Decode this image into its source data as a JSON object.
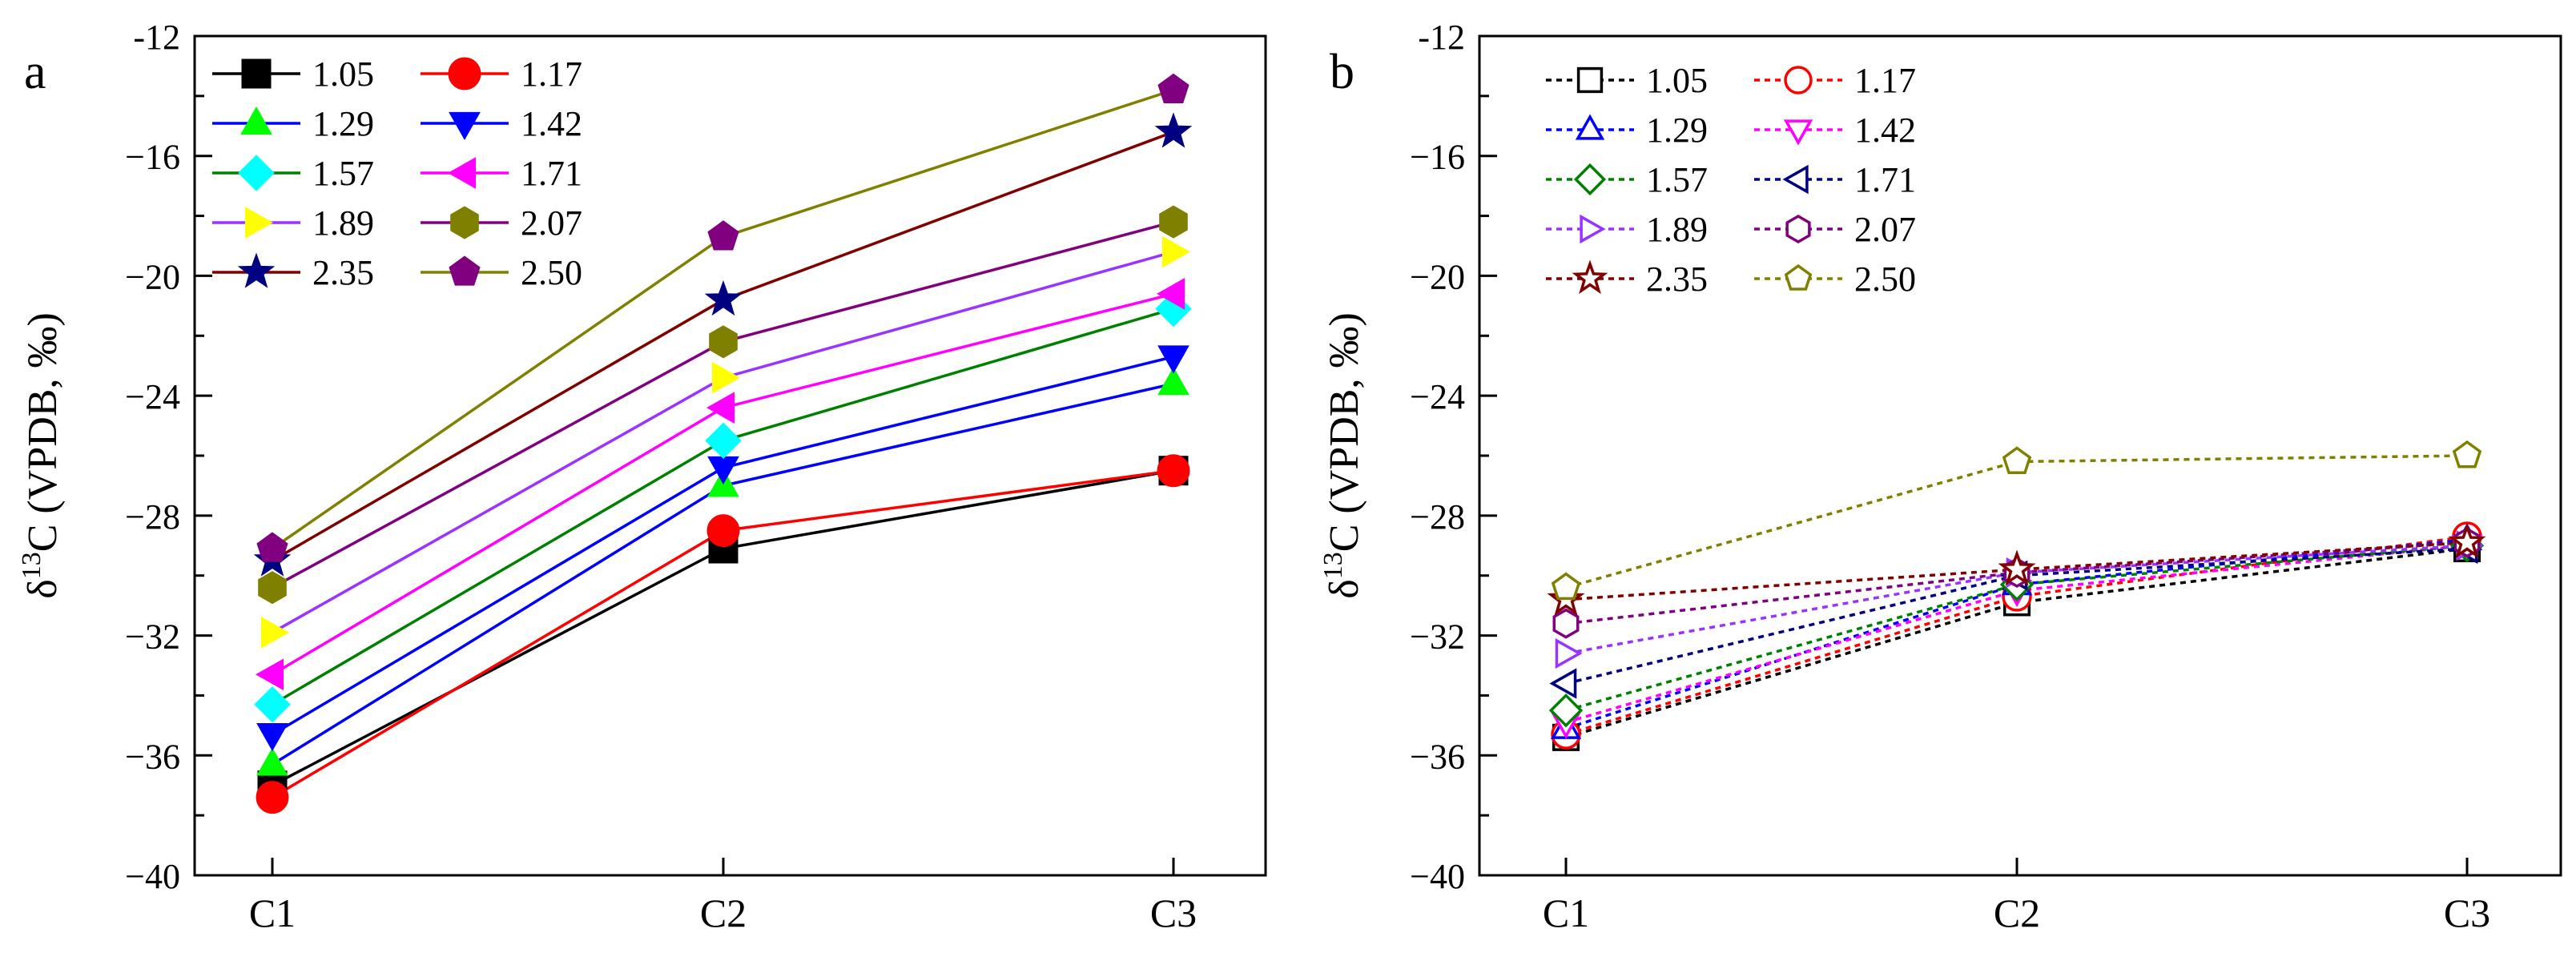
{
  "chart_data": [
    {
      "panel_label": "a",
      "type": "line",
      "line_style": "solid",
      "marker_fill": "filled",
      "title": "",
      "xlabel": "",
      "ylabel_parts": [
        "δ",
        "13",
        "C (VPDB, ‰)"
      ],
      "categories": [
        "C1",
        "C2",
        "C3"
      ],
      "ylim": [
        -40,
        -12
      ],
      "yticks": [
        -12,
        -16,
        -20,
        -24,
        -28,
        -32,
        -36,
        -40
      ],
      "ytick_labels": [
        "-12",
        "−16",
        "−20",
        "−24",
        "−28",
        "−32",
        "−36",
        "−40"
      ],
      "legend_position": "top-left",
      "series": [
        {
          "name": "1.05",
          "color": "#000000",
          "marker": "square",
          "values": [
            -37.0,
            -29.1,
            -26.5
          ]
        },
        {
          "name": "1.17",
          "color": "#ff0000",
          "marker": "circle",
          "values": [
            -37.4,
            -28.5,
            -26.5
          ]
        },
        {
          "name": "1.29",
          "color": "#00ff00",
          "line_color": "#0000ff",
          "marker": "triangle-up",
          "values": [
            -36.3,
            -27.0,
            -23.6
          ]
        },
        {
          "name": "1.42",
          "color": "#0000ff",
          "marker": "triangle-down",
          "values": [
            -35.3,
            -26.4,
            -22.7
          ]
        },
        {
          "name": "1.57",
          "color": "#00ffff",
          "line_color": "#008000",
          "marker": "diamond",
          "values": [
            -34.3,
            -25.5,
            -21.1
          ]
        },
        {
          "name": "1.71",
          "color": "#ff00ff",
          "marker": "triangle-left",
          "values": [
            -33.3,
            -24.4,
            -20.6
          ]
        },
        {
          "name": "1.89",
          "color": "#ffff00",
          "line_color": "#9933ff",
          "marker": "triangle-right",
          "values": [
            -31.9,
            -23.4,
            -19.2
          ]
        },
        {
          "name": "2.07",
          "color": "#808000",
          "line_color": "#800080",
          "marker": "hexagon",
          "values": [
            -30.4,
            -22.2,
            -18.2
          ]
        },
        {
          "name": "2.35",
          "color": "#000080",
          "line_color": "#800000",
          "marker": "star",
          "values": [
            -29.5,
            -20.8,
            -15.2
          ]
        },
        {
          "name": "2.50",
          "color": "#800080",
          "line_color": "#808000",
          "marker": "pentagon",
          "values": [
            -29.1,
            -18.7,
            -13.8
          ]
        }
      ]
    },
    {
      "panel_label": "b",
      "type": "line",
      "line_style": "dotted",
      "marker_fill": "open",
      "title": "",
      "xlabel": "",
      "ylabel_parts": [
        "δ",
        "13",
        "C (VPDB, ‰)"
      ],
      "categories": [
        "C1",
        "C2",
        "C3"
      ],
      "ylim": [
        -40,
        -12
      ],
      "yticks": [
        -12,
        -16,
        -20,
        -24,
        -28,
        -32,
        -36,
        -40
      ],
      "ytick_labels": [
        "-12",
        "−16",
        "−20",
        "−24",
        "−28",
        "−32",
        "−36",
        "−40"
      ],
      "legend_position": "top-left",
      "series": [
        {
          "name": "1.05",
          "color": "#000000",
          "marker": "square",
          "values": [
            -35.4,
            -30.9,
            -29.1
          ]
        },
        {
          "name": "1.17",
          "color": "#ff0000",
          "marker": "circle",
          "values": [
            -35.3,
            -30.7,
            -28.7
          ]
        },
        {
          "name": "1.29",
          "color": "#0000ff",
          "marker": "triangle-up",
          "values": [
            -35.1,
            -30.3,
            -28.8
          ]
        },
        {
          "name": "1.42",
          "color": "#ff00ff",
          "marker": "triangle-down",
          "values": [
            -34.9,
            -30.5,
            -29.0
          ]
        },
        {
          "name": "1.57",
          "color": "#008000",
          "marker": "diamond",
          "values": [
            -34.5,
            -30.3,
            -29.0
          ]
        },
        {
          "name": "1.71",
          "color": "#000080",
          "marker": "triangle-left",
          "values": [
            -33.6,
            -30.0,
            -29.1
          ]
        },
        {
          "name": "1.89",
          "color": "#9933ff",
          "marker": "triangle-right",
          "values": [
            -32.6,
            -29.9,
            -29.0
          ]
        },
        {
          "name": "2.07",
          "color": "#800080",
          "marker": "hexagon",
          "values": [
            -31.6,
            -29.9,
            -28.9
          ]
        },
        {
          "name": "2.35",
          "color": "#800000",
          "marker": "star",
          "values": [
            -30.8,
            -29.8,
            -28.9
          ]
        },
        {
          "name": "2.50",
          "color": "#808000",
          "marker": "pentagon",
          "values": [
            -30.4,
            -26.2,
            -26.0
          ]
        }
      ]
    }
  ]
}
